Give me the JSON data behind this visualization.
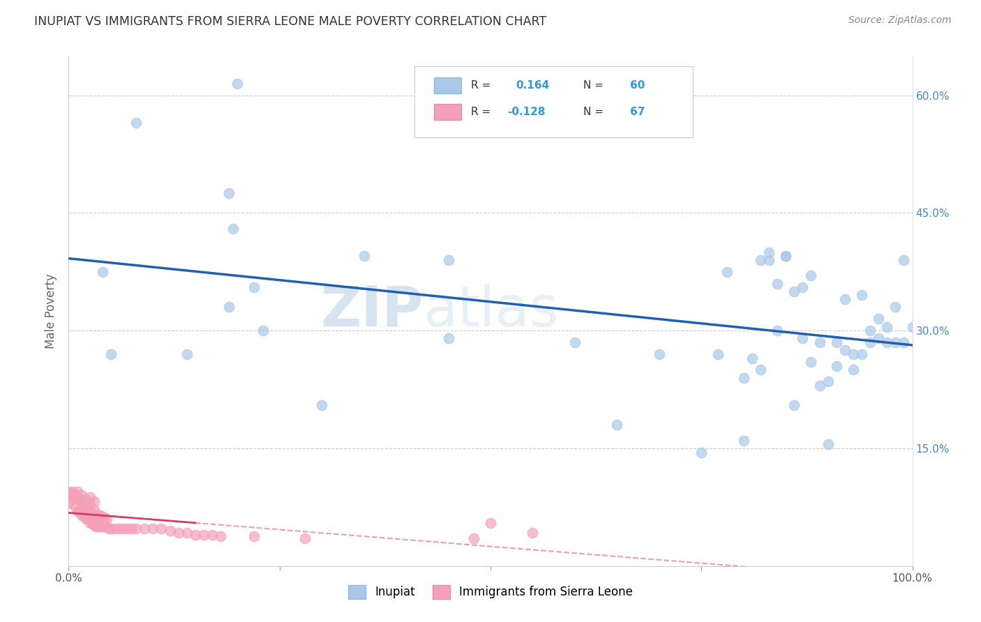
{
  "title": "INUPIAT VS IMMIGRANTS FROM SIERRA LEONE MALE POVERTY CORRELATION CHART",
  "source": "Source: ZipAtlas.com",
  "ylabel": "Male Poverty",
  "watermark_zip": "ZIP",
  "watermark_atlas": "atlas",
  "legend_label_1": "Inupiat",
  "legend_label_2": "Immigrants from Sierra Leone",
  "r1": 0.164,
  "n1": 60,
  "r2": -0.128,
  "n2": 67,
  "color1": "#a8c8e8",
  "color2": "#f4a0b8",
  "line1_color": "#2060b0",
  "line2_color": "#d04060",
  "bg_color": "#ffffff",
  "grid_color": "#cccccc",
  "xlim": [
    0.0,
    1.0
  ],
  "ylim": [
    0.0,
    0.65
  ],
  "xticks": [
    0.0,
    0.25,
    0.5,
    0.75,
    1.0
  ],
  "xtick_labels": [
    "0.0%",
    "",
    "",
    "",
    "100.0%"
  ],
  "ytick_positions": [
    0.15,
    0.3,
    0.45,
    0.6
  ],
  "ytick_labels": [
    "15.0%",
    "30.0%",
    "45.0%",
    "60.0%"
  ],
  "inupiat_x": [
    0.2,
    0.08,
    0.19,
    0.195,
    0.04,
    0.35,
    0.22,
    0.05,
    0.19,
    0.14,
    0.23,
    0.45,
    0.6,
    0.65,
    0.7,
    0.75,
    0.77,
    0.78,
    0.8,
    0.82,
    0.83,
    0.84,
    0.85,
    0.86,
    0.87,
    0.88,
    0.89,
    0.9,
    0.91,
    0.92,
    0.93,
    0.94,
    0.95,
    0.96,
    0.97,
    0.98,
    0.99,
    1.0,
    0.99,
    0.98,
    0.97,
    0.96,
    0.95,
    0.94,
    0.93,
    0.92,
    0.91,
    0.9,
    0.89,
    0.88,
    0.87,
    0.86,
    0.85,
    0.84,
    0.83,
    0.82,
    0.81,
    0.8,
    0.45,
    0.3
  ],
  "inupiat_y": [
    0.615,
    0.565,
    0.475,
    0.43,
    0.375,
    0.395,
    0.355,
    0.27,
    0.33,
    0.27,
    0.3,
    0.39,
    0.285,
    0.18,
    0.27,
    0.145,
    0.27,
    0.375,
    0.24,
    0.25,
    0.39,
    0.3,
    0.395,
    0.205,
    0.29,
    0.37,
    0.285,
    0.155,
    0.285,
    0.275,
    0.25,
    0.27,
    0.285,
    0.29,
    0.305,
    0.285,
    0.285,
    0.305,
    0.39,
    0.33,
    0.285,
    0.315,
    0.3,
    0.345,
    0.27,
    0.34,
    0.255,
    0.235,
    0.23,
    0.26,
    0.355,
    0.35,
    0.395,
    0.36,
    0.4,
    0.39,
    0.265,
    0.16,
    0.29,
    0.205
  ],
  "sierra_x": [
    0.0,
    0.0,
    0.005,
    0.005,
    0.005,
    0.008,
    0.008,
    0.01,
    0.01,
    0.01,
    0.012,
    0.012,
    0.015,
    0.015,
    0.015,
    0.018,
    0.018,
    0.02,
    0.02,
    0.02,
    0.022,
    0.022,
    0.025,
    0.025,
    0.025,
    0.025,
    0.028,
    0.028,
    0.03,
    0.03,
    0.03,
    0.03,
    0.032,
    0.032,
    0.035,
    0.035,
    0.038,
    0.038,
    0.04,
    0.04,
    0.042,
    0.042,
    0.045,
    0.045,
    0.048,
    0.05,
    0.055,
    0.06,
    0.065,
    0.07,
    0.075,
    0.08,
    0.09,
    0.1,
    0.11,
    0.12,
    0.13,
    0.14,
    0.15,
    0.16,
    0.17,
    0.18,
    0.22,
    0.28,
    0.48,
    0.5,
    0.55
  ],
  "sierra_y": [
    0.095,
    0.08,
    0.085,
    0.09,
    0.095,
    0.075,
    0.09,
    0.07,
    0.085,
    0.095,
    0.07,
    0.085,
    0.065,
    0.08,
    0.09,
    0.065,
    0.078,
    0.06,
    0.072,
    0.085,
    0.06,
    0.075,
    0.055,
    0.068,
    0.078,
    0.088,
    0.055,
    0.068,
    0.052,
    0.062,
    0.072,
    0.082,
    0.05,
    0.065,
    0.05,
    0.065,
    0.052,
    0.065,
    0.05,
    0.062,
    0.05,
    0.062,
    0.05,
    0.06,
    0.048,
    0.048,
    0.048,
    0.048,
    0.048,
    0.048,
    0.048,
    0.048,
    0.048,
    0.048,
    0.048,
    0.045,
    0.042,
    0.042,
    0.04,
    0.04,
    0.04,
    0.038,
    0.038,
    0.035,
    0.035,
    0.055,
    0.042
  ]
}
